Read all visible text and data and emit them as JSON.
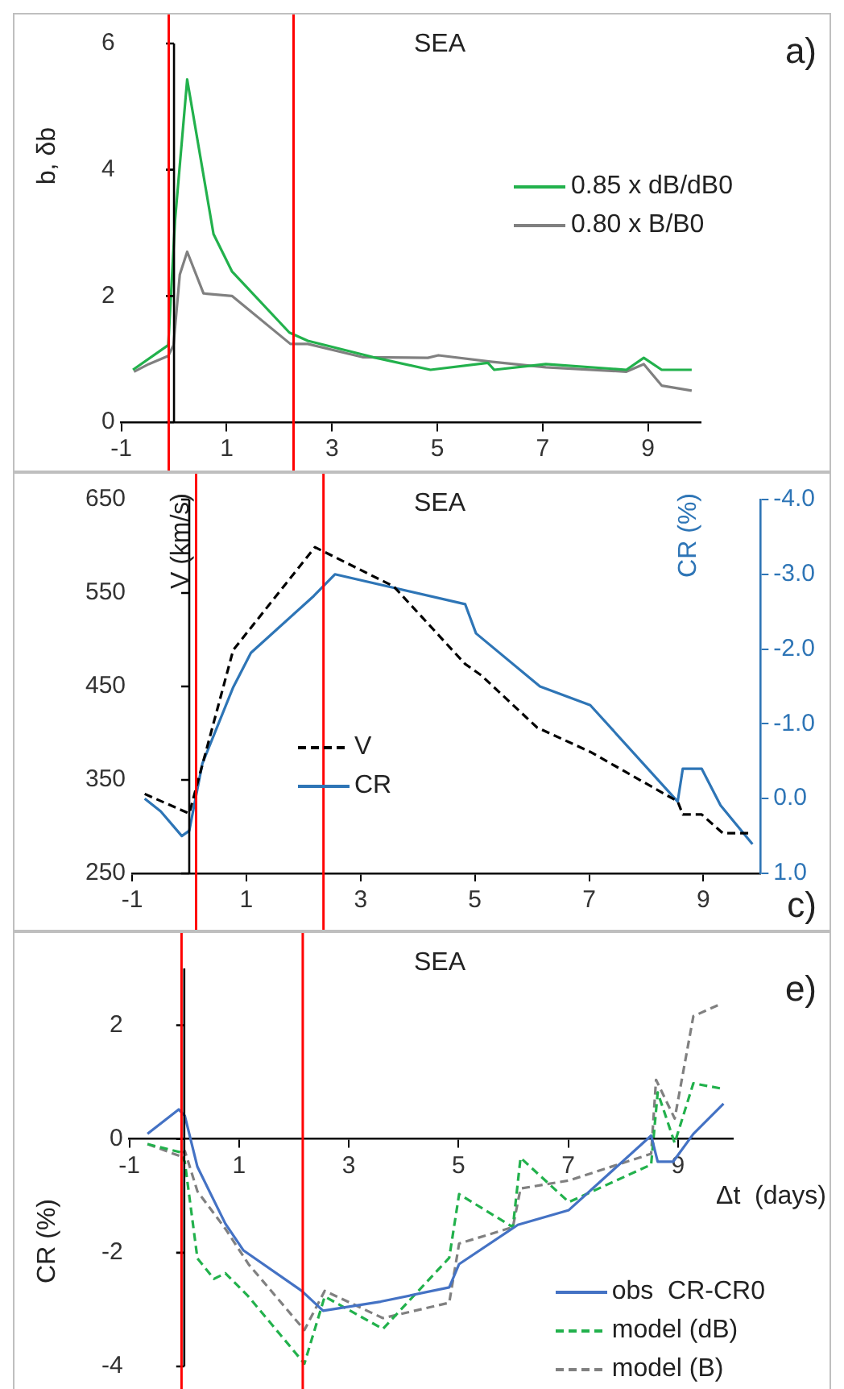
{
  "chart_data": [
    {
      "type": "line",
      "title": "SEA",
      "ylabel": "b, δb",
      "annotations": [
        "a)"
      ],
      "xlim": [
        -1,
        10
      ],
      "xticks": [
        -1,
        1,
        3,
        5,
        7,
        9
      ],
      "ylim": [
        0,
        6
      ],
      "yticks": [
        0,
        2,
        4,
        6
      ],
      "grid": false,
      "legend": "right",
      "marker": "none",
      "ref_lines": [
        {
          "axis": "x",
          "value": -0.1,
          "color": "#ff0000"
        },
        {
          "axis": "x",
          "value": 2.27,
          "color": "#ff0000"
        }
      ],
      "series": [
        {
          "name": "0.85 x dB/dB0",
          "color": "#22b14c",
          "line_style": "solid",
          "x": [
            -0.78,
            -0.11,
            0.02,
            0.25,
            0.75,
            1.1,
            2.19,
            2.54,
            3.78,
            4.87,
            5.96,
            6.08,
            7.06,
            8.59,
            8.92,
            9.26,
            9.83
          ],
          "values": [
            0.83,
            1.22,
            3.2,
            5.43,
            2.98,
            2.39,
            1.42,
            1.29,
            1.03,
            0.83,
            0.94,
            0.83,
            0.92,
            0.83,
            1.02,
            0.83,
            0.83
          ]
        },
        {
          "name": "0.80 x B/B0",
          "color": "#808080",
          "line_style": "solid",
          "x": [
            -0.76,
            -0.48,
            -0.11,
            -0.01,
            0.11,
            0.25,
            0.56,
            1.1,
            2.21,
            2.54,
            3.58,
            4.82,
            5.02,
            6.01,
            7.06,
            8.59,
            8.92,
            9.26,
            9.83
          ],
          "values": [
            0.8,
            0.92,
            1.05,
            1.22,
            2.34,
            2.7,
            2.04,
            2.0,
            1.24,
            1.24,
            1.03,
            1.02,
            1.06,
            0.96,
            0.87,
            0.8,
            0.92,
            0.58,
            0.5
          ]
        }
      ]
    },
    {
      "type": "line",
      "title": "SEA",
      "ylabel": "V (km/s)",
      "y2label": "CR (%)",
      "annotations": [
        "c)"
      ],
      "xlim": [
        -1,
        10
      ],
      "xticks": [
        -1,
        1,
        3,
        5,
        7,
        9
      ],
      "ylim": [
        250,
        650
      ],
      "yticks": [
        250,
        350,
        450,
        550,
        650
      ],
      "y2lim": [
        1,
        -4
      ],
      "y2ticks": [
        {
          "value": -4,
          "label": "-4.0"
        },
        {
          "value": -3,
          "label": "-3.0"
        },
        {
          "value": -2,
          "label": "-2.0"
        },
        {
          "value": -1,
          "label": "-1.0"
        },
        {
          "value": 0,
          "label": "0.0"
        },
        {
          "value": 1,
          "label": "1.0"
        }
      ],
      "grid": false,
      "legend": "center",
      "marker": "none",
      "ref_lines": [
        {
          "axis": "x",
          "value": 0.12,
          "color": "#ff0000"
        },
        {
          "axis": "x",
          "value": 2.35,
          "color": "#ff0000"
        }
      ],
      "series": [
        {
          "name": "V",
          "color": "#000000",
          "line_style": "dashed",
          "x": [
            -0.78,
            0,
            0.77,
            2.2,
            3.58,
            4.83,
            5.11,
            6.09,
            7.02,
            8.55,
            8.64,
            8.97,
            9.34,
            9.86
          ],
          "values": [
            335,
            314,
            489,
            599,
            557,
            474,
            462,
            406,
            380,
            327,
            313,
            313,
            293,
            293
          ]
        },
        {
          "name": "CR",
          "color": "#2e75b6",
          "line_style": "solid",
          "axis": "y2",
          "x": [
            -0.78,
            -0.5,
            -0.13,
            0,
            0.23,
            0.77,
            1.08,
            2.18,
            2.55,
            4.83,
            5.02,
            6.14,
            7.02,
            8.55,
            8.64,
            8.97,
            9.3,
            9.86
          ],
          "values": [
            0.0,
            0.17,
            0.5,
            0.43,
            -0.47,
            -1.49,
            -1.95,
            -2.71,
            -3.0,
            -2.6,
            -2.21,
            -1.5,
            -1.25,
            0.04,
            -0.4,
            -0.4,
            0.09,
            0.61
          ]
        }
      ]
    },
    {
      "type": "line",
      "title": "SEA",
      "xlabel": "Δt  (days)",
      "ylabel": "CR (%)",
      "annotations": [
        "e)"
      ],
      "xlim": [
        -1,
        10
      ],
      "xticks": [
        -1,
        1,
        3,
        5,
        7,
        9
      ],
      "ylim": [
        -4,
        3
      ],
      "yticks": [
        -4,
        -2,
        0,
        2
      ],
      "grid": false,
      "legend": "bottom right",
      "marker": "none",
      "ref_lines": [
        {
          "axis": "x",
          "value": -0.05,
          "color": "#ff0000"
        },
        {
          "axis": "x",
          "value": 2.16,
          "color": "#ff0000"
        }
      ],
      "series": [
        {
          "name": "obs  CR-CR0",
          "color": "#4472c4",
          "line_style": "solid",
          "x": [
            -0.67,
            -0.1,
            0.01,
            0.24,
            0.75,
            1.08,
            2.14,
            2.53,
            3.58,
            4.83,
            5.01,
            6.08,
            7.01,
            8.51,
            8.63,
            8.91,
            9.28,
            9.83
          ],
          "values": [
            0.09,
            0.52,
            0.41,
            -0.49,
            -1.49,
            -1.96,
            -2.67,
            -3.02,
            -2.86,
            -2.61,
            -2.2,
            -1.51,
            -1.25,
            0.06,
            -0.4,
            -0.4,
            0.09,
            0.62
          ]
        },
        {
          "name": "model (dB)",
          "color": "#22b14c",
          "line_style": "dashed",
          "x": [
            -0.67,
            -0.08,
            0.01,
            0.24,
            0.54,
            0.75,
            1.17,
            2.19,
            2.56,
            3.62,
            4.83,
            5.01,
            5.99,
            6.13,
            7.01,
            8.51,
            8.63,
            8.94,
            9.28,
            9.83
          ],
          "values": [
            -0.09,
            -0.23,
            -0.4,
            -2.1,
            -2.46,
            -2.36,
            -2.77,
            -3.95,
            -2.77,
            -3.34,
            -2.09,
            -0.97,
            -1.55,
            -0.33,
            -1.11,
            -0.45,
            0.82,
            -0.07,
            0.98,
            0.88
          ]
        },
        {
          "name": "model (B)",
          "color": "#808080",
          "line_style": "dashed",
          "x": [
            -0.67,
            -0.08,
            0.01,
            0.24,
            0.75,
            1.17,
            2.19,
            2.56,
            3.62,
            4.83,
            5.01,
            5.99,
            6.13,
            7.01,
            8.51,
            8.6,
            8.94,
            9.28,
            9.79
          ],
          "values": [
            -0.09,
            -0.3,
            -0.21,
            -0.92,
            -1.58,
            -2.2,
            -3.36,
            -2.67,
            -3.15,
            -2.88,
            -1.84,
            -1.55,
            -0.87,
            -0.73,
            -0.26,
            1.04,
            0.36,
            2.16,
            2.38
          ]
        }
      ]
    }
  ]
}
